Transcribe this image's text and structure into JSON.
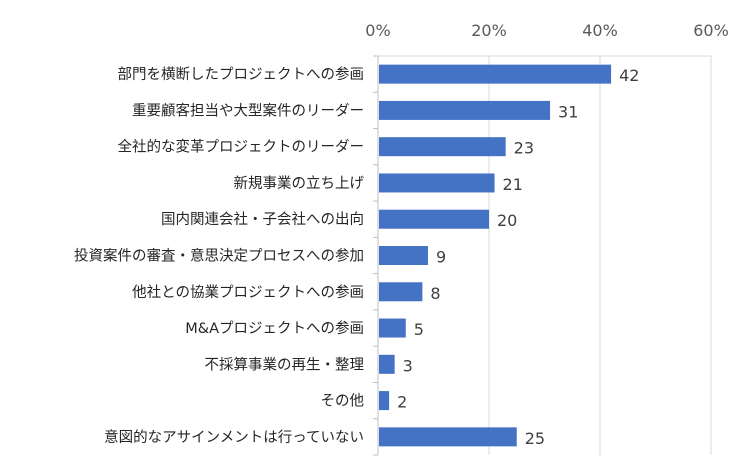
{
  "chart_data": {
    "type": "bar",
    "orientation": "horizontal",
    "categories": [
      "部門を横断したプロジェクトへの参画",
      "重要顧客担当や大型案件のリーダー",
      "全社的な変革プロジェクトのリーダー",
      "新規事業の立ち上げ",
      "国内関連会社・子会社への出向",
      "投資案件の審査・意思決定プロセスへの参加",
      "他社との協業プロジェクトへの参画",
      "M&Aプロジェクトへの参画",
      "不採算事業の再生・整理",
      "その他",
      "意図的なアサインメントは行っていない"
    ],
    "values": [
      42,
      31,
      23,
      21,
      20,
      9,
      8,
      5,
      3,
      2,
      25
    ],
    "data_labels": [
      "42",
      "31",
      "23",
      "21",
      "20",
      "9",
      "8",
      "5",
      "3",
      "2",
      "25"
    ],
    "xlim": [
      0,
      60
    ],
    "xticks": [
      0,
      20,
      40,
      60
    ],
    "xtick_labels": [
      "0%",
      "20%",
      "40%",
      "60%"
    ],
    "axis_position": "top",
    "grid": true,
    "bar_color": "#4472C4",
    "title": "",
    "xlabel": "",
    "ylabel": ""
  }
}
